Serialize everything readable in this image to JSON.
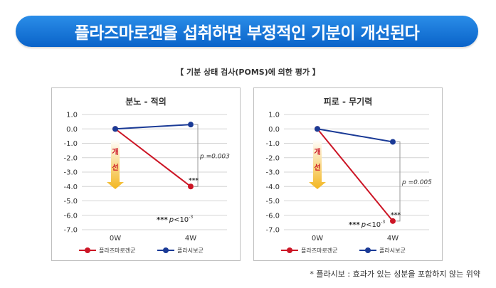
{
  "banner": {
    "title": "플라즈마로겐을 섭취하면 부정적인 기분이 개선된다"
  },
  "subtitle": "【 기분 상태 검사(POMS)에 의한 평가 】",
  "footnote": "* 플라시보 : 효과가 있는 성분을 포함하지 않는 위약",
  "improve_label": [
    "개",
    "선"
  ],
  "colors": {
    "banner": "#0a63c9",
    "plasmalogen": "#cc1525",
    "placebo": "#1a3a96",
    "arrow": "#f3b61f",
    "improve_text": "#cc1525"
  },
  "chart_data": [
    {
      "type": "line",
      "title": "분노 - 적의",
      "categories": [
        "0W",
        "4W"
      ],
      "ylim": [
        -7.0,
        1.0
      ],
      "yticks": [
        "1.0",
        "0.0",
        "-1.0",
        "-2.0",
        "-3.0",
        "-4.0",
        "-5.0",
        "-6.0",
        "-7.0"
      ],
      "grid": true,
      "legend": "bottom",
      "series": [
        {
          "name": "플라즈마로겐군",
          "values": [
            0.0,
            -4.0
          ]
        },
        {
          "name": "플라시보군",
          "values": [
            0.0,
            0.3
          ]
        }
      ],
      "annotations": {
        "sig_marker": "***",
        "bracket_p": "p =0.003",
        "note_stars": "***",
        "note_p": "p",
        "note_rel": "<10",
        "note_exp": "-3"
      }
    },
    {
      "type": "line",
      "title": "피로 - 무기력",
      "categories": [
        "0W",
        "4W"
      ],
      "ylim": [
        -7.0,
        1.0
      ],
      "yticks": [
        "1.0",
        "0.0",
        "-1.0",
        "-2.0",
        "-3.0",
        "-4.0",
        "-5.0",
        "-6.0",
        "-7.0"
      ],
      "grid": true,
      "legend": "bottom",
      "series": [
        {
          "name": "플라즈마로겐군",
          "values": [
            0.0,
            -6.4
          ]
        },
        {
          "name": "플라시보군",
          "values": [
            0.0,
            -0.9
          ]
        }
      ],
      "annotations": {
        "sig_marker": "***",
        "bracket_p": "p =0.005",
        "note_stars": "***",
        "note_p": "p",
        "note_rel": "<10",
        "note_exp": "-3"
      }
    }
  ]
}
